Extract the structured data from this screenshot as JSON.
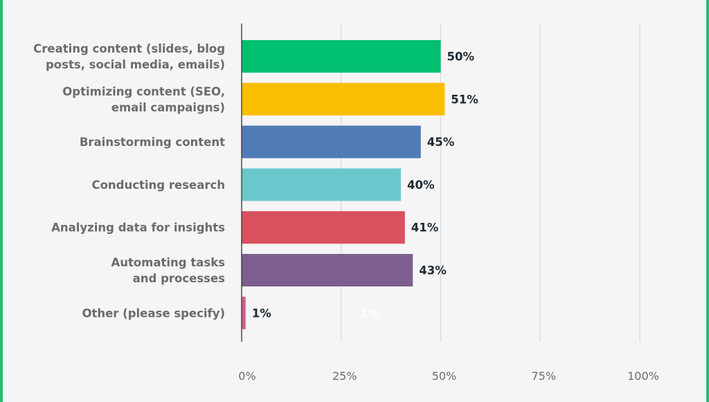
{
  "chart_data": {
    "type": "bar",
    "orientation": "horizontal",
    "title": "",
    "xlabel": "",
    "ylabel": "",
    "xlim": [
      0,
      100
    ],
    "grid": true,
    "categories": [
      [
        "Creating content (slides, blog",
        "posts, social media, emails)"
      ],
      [
        "Optimizing content (SEO,",
        "email campaigns)"
      ],
      [
        "Brainstorming content"
      ],
      [
        "Conducting research"
      ],
      [
        "Analyzing data for insights"
      ],
      [
        "Automating tasks",
        "and processes"
      ],
      [
        "Other (please specify)"
      ]
    ],
    "values": [
      50,
      51,
      45,
      40,
      41,
      43,
      1
    ],
    "value_labels": [
      "50%",
      "51%",
      "45%",
      "40%",
      "41%",
      "43%",
      "1%"
    ],
    "colors": [
      "#00bf6f",
      "#f9be00",
      "#507cb6",
      "#6bc8cd",
      "#d9505f",
      "#7d5e8f",
      "#d25f90"
    ],
    "x_ticks": [
      0,
      25,
      50,
      75,
      100
    ],
    "x_tick_labels": [
      "0%",
      "25%",
      "50%",
      "75%",
      "100%"
    ],
    "annotation": "1%"
  }
}
